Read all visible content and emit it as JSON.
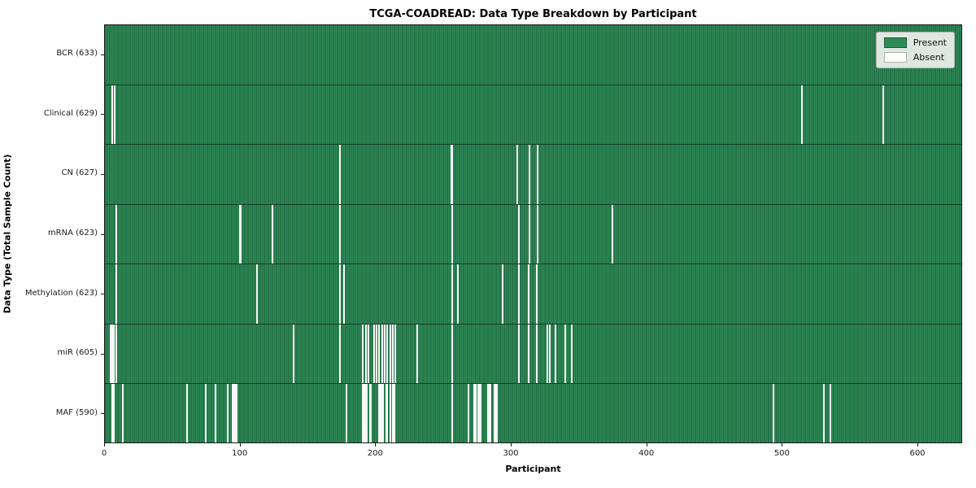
{
  "chart_data": {
    "type": "heatmap",
    "title": "TCGA-COADREAD: Data Type Breakdown by Participant",
    "xlabel": "Participant",
    "ylabel": "Data Type (Total Sample Count)",
    "x_ticks": [
      0,
      100,
      200,
      300,
      400,
      500,
      600
    ],
    "x_max": 633,
    "n_participants": 633,
    "grid": false,
    "colors": {
      "present": "#2e8b57",
      "bar_edge": "#1c5c3a",
      "absent": "#f8f8f8",
      "row_separator": "rgba(10,25,15,0.65)",
      "legend_bg": "rgba(238,240,238,0.92)",
      "legend_border": "#b5b5b5"
    },
    "legend": {
      "position": "upper-right",
      "entries": [
        {
          "label": "Present",
          "color": "#2e8b57",
          "border": "#1c5c3a"
        },
        {
          "label": "Absent",
          "color": "#ffffff",
          "border": "#b0b0b0"
        }
      ]
    },
    "rows": [
      {
        "data_type": "BCR",
        "label": "BCR (633)",
        "count": 633,
        "absent_participants": []
      },
      {
        "data_type": "Clinical",
        "label": "Clinical (629)",
        "count": 629,
        "absent_participants": [
          5,
          7,
          514,
          574
        ]
      },
      {
        "data_type": "CN",
        "label": "CN (627)",
        "count": 627,
        "absent_participants": [
          173,
          255,
          256,
          304,
          313,
          319
        ]
      },
      {
        "data_type": "mRNA",
        "label": "mRNA (623)",
        "count": 623,
        "absent_participants": [
          8,
          99,
          100,
          123,
          173,
          256,
          305,
          313,
          319,
          374
        ]
      },
      {
        "data_type": "Methylation",
        "label": "Methylation (623)",
        "count": 623,
        "absent_participants": [
          8,
          112,
          173,
          176,
          256,
          260,
          293,
          305,
          312,
          318
        ]
      },
      {
        "data_type": "miR",
        "label": "miR (605)",
        "count": 605,
        "absent_participants": [
          4,
          5,
          6,
          8,
          139,
          173,
          190,
          192,
          194,
          198,
          200,
          202,
          204,
          206,
          208,
          210,
          212,
          214,
          230,
          256,
          305,
          312,
          318,
          326,
          328,
          332,
          339,
          344
        ]
      },
      {
        "data_type": "MAF",
        "label": "MAF (590)",
        "count": 590,
        "absent_participants": [
          5,
          6,
          13,
          60,
          74,
          81,
          90,
          94,
          95,
          96,
          97,
          178,
          190,
          191,
          192,
          193,
          195,
          196,
          202,
          203,
          204,
          205,
          207,
          208,
          210,
          212,
          213,
          256,
          268,
          272,
          273,
          275,
          276,
          277,
          282,
          283,
          284,
          287,
          288,
          289,
          493,
          530,
          535
        ]
      }
    ]
  }
}
